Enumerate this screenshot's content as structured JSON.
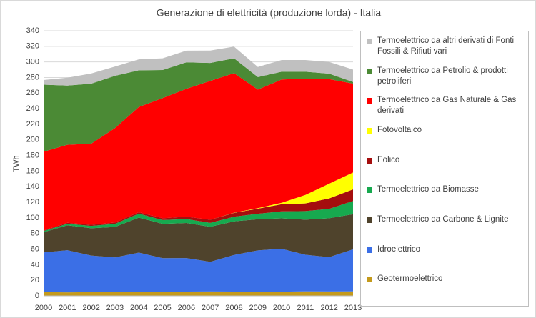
{
  "chart_data": {
    "type": "stacked-area",
    "title": "Generazione di elettricità  (produzione lorda) - Italia",
    "y_label": "TWh",
    "categories": [
      "2000",
      "2001",
      "2002",
      "2003",
      "2004",
      "2005",
      "2006",
      "2007",
      "2008",
      "2009",
      "2010",
      "2011",
      "2012",
      "2013"
    ],
    "ylim": [
      0,
      340
    ],
    "yticks": [
      0,
      20,
      40,
      60,
      80,
      100,
      120,
      140,
      160,
      180,
      200,
      220,
      240,
      260,
      280,
      300,
      320,
      340
    ],
    "grid": true,
    "legend": "right",
    "series": [
      {
        "name": "Geotermoelettrico",
        "color": "#c49a1c",
        "values": [
          4.7,
          4.5,
          4.7,
          5.3,
          5.4,
          5.3,
          5.5,
          5.6,
          5.5,
          5.3,
          5.4,
          5.7,
          5.6,
          5.7
        ]
      },
      {
        "name": "Idroelettrico",
        "color": "#3b6fe6",
        "values": [
          51,
          54,
          47,
          44,
          50,
          43,
          43,
          38,
          47,
          53,
          55,
          47,
          44,
          54
        ]
      },
      {
        "name": "Termoelettrico da Carbone & Lignite",
        "color": "#4f432c",
        "values": [
          26,
          32,
          35,
          39,
          45,
          44,
          45,
          45,
          43,
          40,
          39,
          45,
          50,
          45
        ]
      },
      {
        "name": "Termoelettrico da Biomasse",
        "color": "#17a94f",
        "values": [
          1.5,
          2,
          3,
          4,
          5,
          5,
          5,
          5,
          6,
          7,
          9,
          11,
          12,
          17
        ]
      },
      {
        "name": "Eolico",
        "color": "#a50e0e",
        "values": [
          0.6,
          1.2,
          1.4,
          1.8,
          1.8,
          2.3,
          3.0,
          4.0,
          4.9,
          6.5,
          9.1,
          9.9,
          13.4,
          14.9
        ]
      },
      {
        "name": "Fotovoltaico",
        "color": "#ffff00",
        "values": [
          0,
          0,
          0,
          0,
          0,
          0,
          0,
          0,
          0.2,
          0.7,
          1.9,
          10.8,
          18.9,
          21.6
        ]
      },
      {
        "name": "Termoelettrico da Gas Naturale & Gas derivati",
        "color": "#ff0000",
        "values": [
          101,
          100,
          104,
          121,
          135,
          154,
          164,
          178,
          179,
          152,
          158,
          149,
          134,
          114
        ]
      },
      {
        "name": "Termoelettrico da Petrolio & prodotti petroliferi",
        "color": "#4b8a35",
        "values": [
          86,
          76,
          77,
          67,
          47,
          36,
          34,
          23,
          19,
          16,
          10,
          9,
          7,
          2
        ]
      },
      {
        "name": "Termoelettrico da altri derivati di Fonti Fossili & Rifiuti vari",
        "color": "#c0c0c0",
        "values": [
          6,
          10,
          13,
          12,
          14,
          15,
          15,
          16,
          15,
          13,
          15,
          15,
          15,
          16
        ]
      }
    ]
  }
}
